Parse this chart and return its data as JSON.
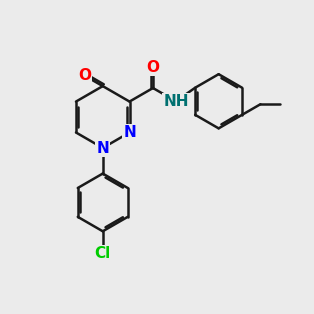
{
  "bg_color": "#ebebeb",
  "bond_color": "#1a1a1a",
  "N_color": "#0000ff",
  "O_color": "#ff0000",
  "Cl_color": "#00cc00",
  "NH_color": "#007070",
  "bond_width": 1.8,
  "dbo": 0.07,
  "fs": 11,
  "title": ""
}
